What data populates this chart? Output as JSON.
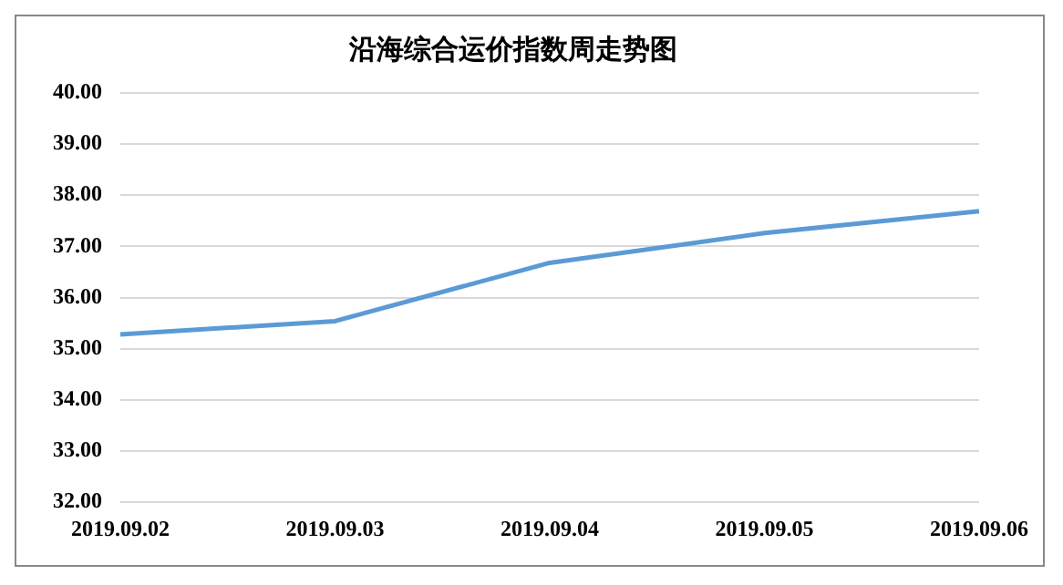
{
  "chart_data": {
    "type": "line",
    "title": "沿海综合运价指数周走势图",
    "categories": [
      "2019.09.02",
      "2019.09.03",
      "2019.09.04",
      "2019.09.05",
      "2019.09.06"
    ],
    "series": [
      {
        "color": "#5b9bd5",
        "values": [
          35.28,
          35.54,
          36.68,
          37.26,
          37.69
        ]
      }
    ],
    "ylim": [
      32,
      40
    ],
    "yticks": [
      {
        "value": 32,
        "label": "32.00"
      },
      {
        "value": 33,
        "label": "33.00"
      },
      {
        "value": 34,
        "label": "34.00"
      },
      {
        "value": 35,
        "label": "35.00"
      },
      {
        "value": 36,
        "label": "36.00"
      },
      {
        "value": 37,
        "label": "37.00"
      },
      {
        "value": 38,
        "label": "38.00"
      },
      {
        "value": 39,
        "label": "39.00"
      },
      {
        "value": 40,
        "label": "40.00"
      }
    ],
    "grid": "y",
    "legend": false,
    "marker": "none",
    "line_style": "solid"
  }
}
